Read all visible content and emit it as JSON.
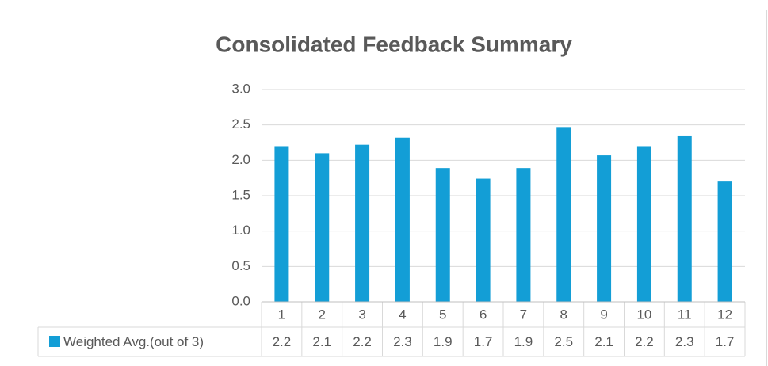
{
  "chart_data": {
    "type": "bar",
    "title": "Consolidated Feedback Summary",
    "categories": [
      "1",
      "2",
      "3",
      "4",
      "5",
      "6",
      "7",
      "8",
      "9",
      "10",
      "11",
      "12"
    ],
    "series": [
      {
        "name": "Weighted Avg.(out of 3)",
        "color": "#139ed6",
        "values": [
          2.2,
          2.1,
          2.22,
          2.32,
          1.89,
          1.74,
          1.89,
          2.47,
          2.07,
          2.2,
          2.34,
          1.7
        ],
        "value_labels": [
          "2.2",
          "2.1",
          "2.2",
          "2.3",
          "1.9",
          "1.7",
          "1.9",
          "2.5",
          "2.1",
          "2.2",
          "2.3",
          "1.7"
        ]
      }
    ],
    "ylim": [
      0,
      3
    ],
    "yticks": [
      {
        "value": 0,
        "label": "0.0"
      },
      {
        "value": 0.5,
        "label": "0.5"
      },
      {
        "value": 1,
        "label": "1.0"
      },
      {
        "value": 1.5,
        "label": "1.5"
      },
      {
        "value": 2,
        "label": "2.0"
      },
      {
        "value": 2.5,
        "label": "2.5"
      },
      {
        "value": 3,
        "label": "3.0"
      }
    ],
    "grid": true
  }
}
